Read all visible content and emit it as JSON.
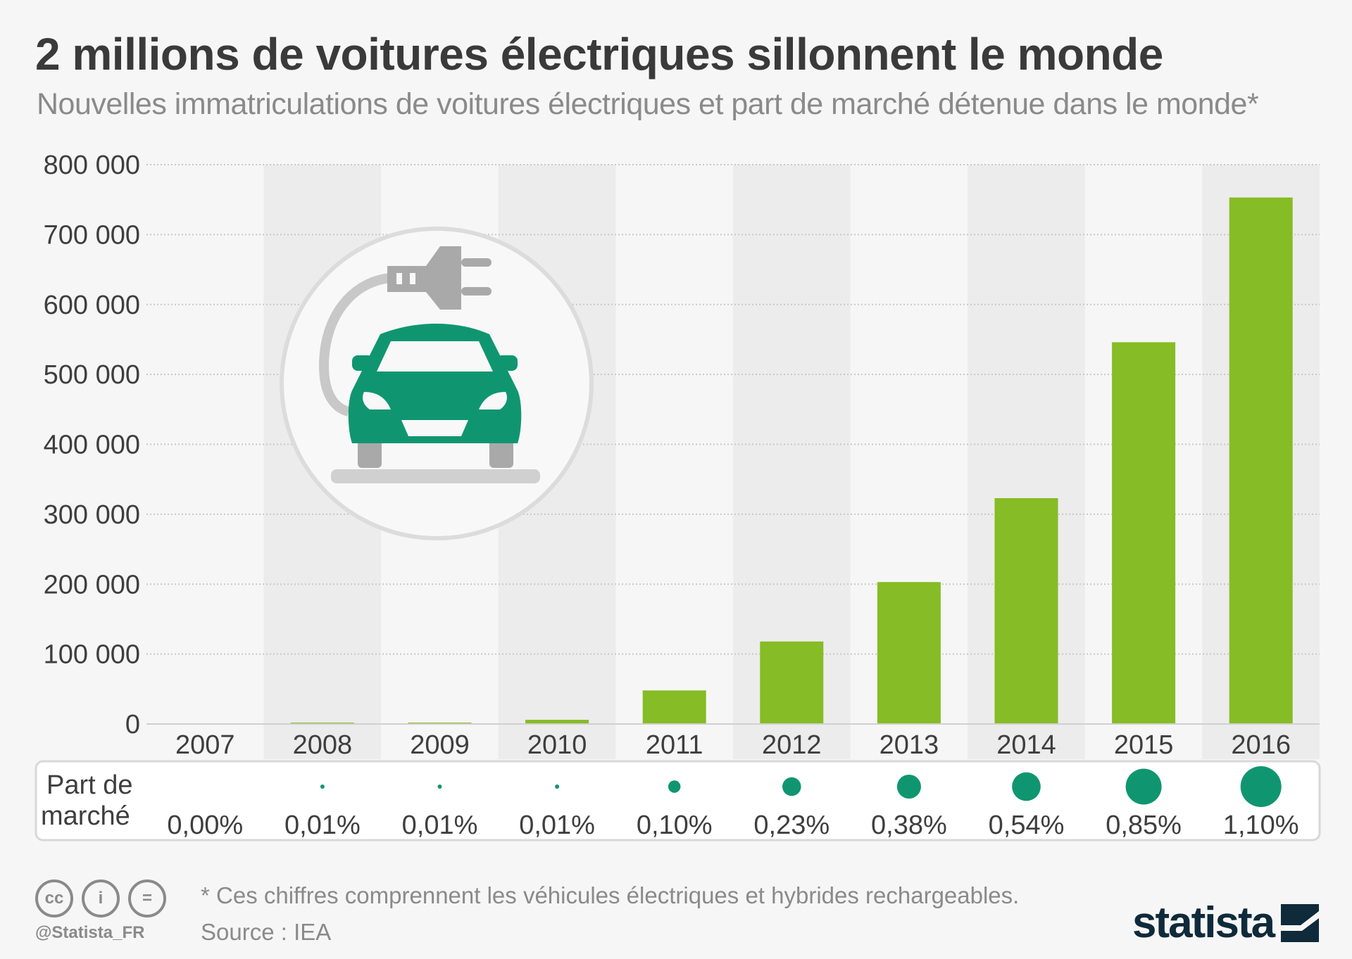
{
  "title": "2 millions de voitures électriques sillonnent le monde",
  "subtitle": "Nouvelles immatriculations de voitures électriques et part de marché détenue dans le monde*",
  "colors": {
    "bar": "#86bc25",
    "dot": "#0f9670",
    "band": "#ececec",
    "background": "#f6f6f6"
  },
  "chart_data": {
    "type": "bar",
    "title": "2 millions de voitures électriques sillonnent le monde",
    "xlabel": "",
    "ylabel": "",
    "ylim": [
      0,
      800000
    ],
    "yticks": [
      0,
      100000,
      200000,
      300000,
      400000,
      500000,
      600000,
      700000,
      800000
    ],
    "ytick_labels": [
      "0",
      "100 000",
      "200 000",
      "300 000",
      "400 000",
      "500 000",
      "600 000",
      "700 000",
      "800 000"
    ],
    "categories": [
      "2007",
      "2008",
      "2009",
      "2010",
      "2011",
      "2012",
      "2013",
      "2014",
      "2015",
      "2016"
    ],
    "values": [
      0,
      2000,
      2000,
      6000,
      48000,
      118000,
      203000,
      323000,
      546000,
      753000
    ],
    "grid": true,
    "market_share": {
      "label": "Part de marché",
      "label_lines": [
        "Part de",
        "marché"
      ],
      "values": [
        0.0,
        0.01,
        0.01,
        0.01,
        0.1,
        0.23,
        0.38,
        0.54,
        0.85,
        1.1
      ],
      "labels": [
        "0,00%",
        "0,01%",
        "0,01%",
        "0,01%",
        "0,10%",
        "0,23%",
        "0,38%",
        "0,54%",
        "0,85%",
        "1,10%"
      ]
    }
  },
  "footer": {
    "note": "* Ces chiffres comprennent les véhicules électriques et hybrides rechargeables.",
    "source": "Source : IEA",
    "handle": "@Statista_FR",
    "cc_icons": [
      "cc",
      "by",
      "nd"
    ],
    "cc_labels": [
      "cc",
      "i",
      "="
    ],
    "logo": "statista"
  }
}
